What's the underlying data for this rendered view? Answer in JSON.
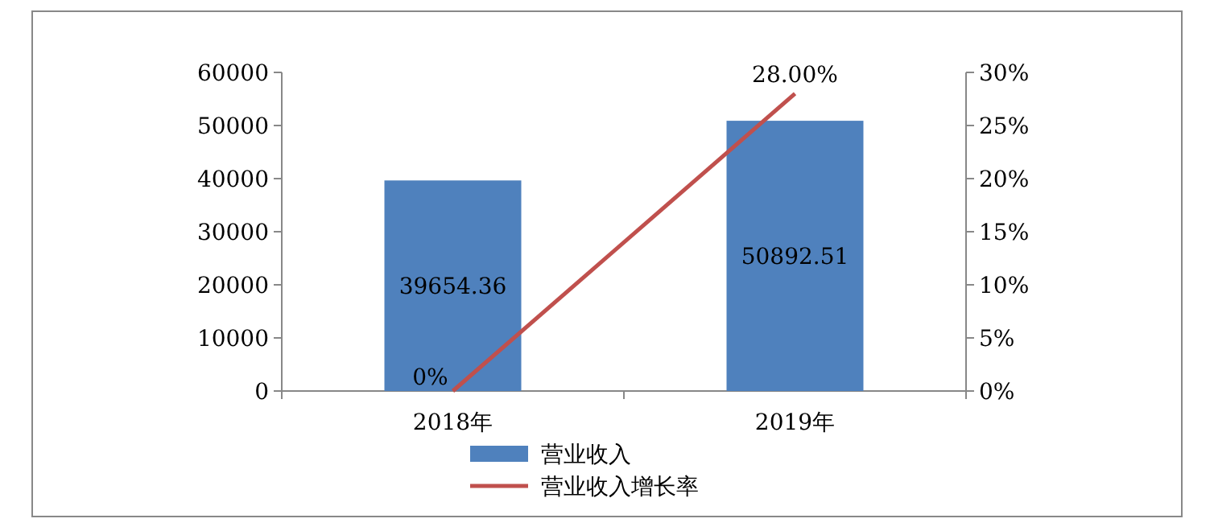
{
  "chart_data": {
    "type": "bar",
    "categories": [
      "2018年",
      "2019年"
    ],
    "series": [
      {
        "name": "营业收入",
        "color": "#4f81bd",
        "values": [
          39654.36,
          50892.51
        ],
        "value_labels": [
          "39654.36",
          "50892.51"
        ]
      },
      {
        "name": "营业收入增长率",
        "type": "line",
        "axis": "y2",
        "color": "#c0504d",
        "values": [
          0,
          28.0
        ],
        "value_labels": [
          "0%",
          "28.00%"
        ],
        "marker": "none"
      }
    ],
    "ylim": [
      0,
      60000
    ],
    "yticks": [
      0,
      10000,
      20000,
      30000,
      40000,
      50000,
      60000
    ],
    "y2lim": [
      0,
      30
    ],
    "y2ticks": [
      {
        "value": 0,
        "label": "0%"
      },
      {
        "value": 5,
        "label": "5%"
      },
      {
        "value": 10,
        "label": "10%"
      },
      {
        "value": 15,
        "label": "15%"
      },
      {
        "value": 20,
        "label": "20%"
      },
      {
        "value": 25,
        "label": "25%"
      },
      {
        "value": 30,
        "label": "30%"
      }
    ],
    "grid": false,
    "legend": "bottom"
  }
}
